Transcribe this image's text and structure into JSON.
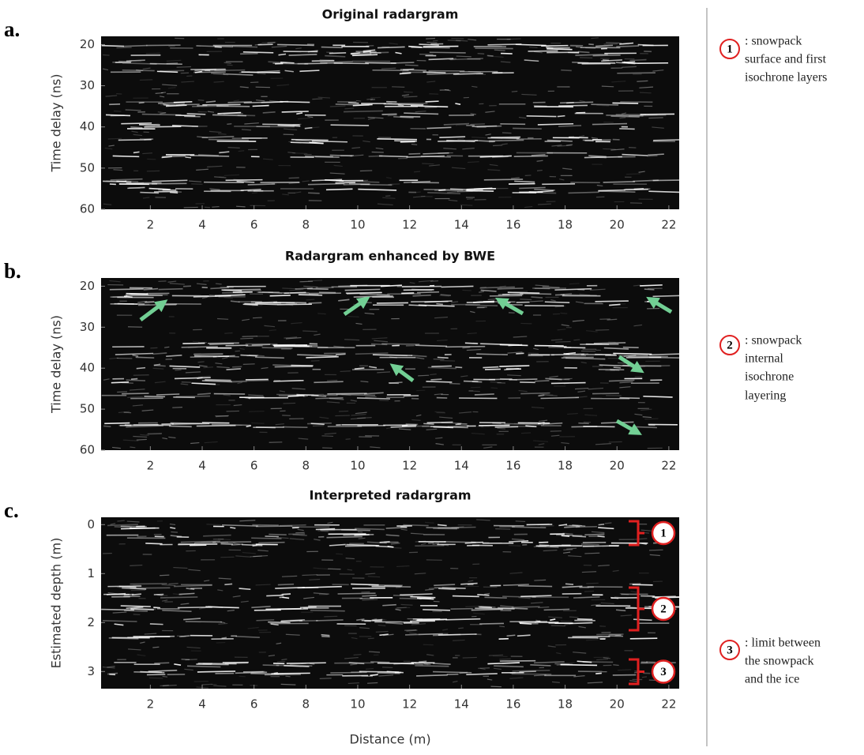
{
  "panels": [
    {
      "label": "a.",
      "title": "Original radargram",
      "ylabel": "Time delay (ns)",
      "xlim": [
        0.1,
        22.4
      ],
      "ylim": [
        18,
        60
      ],
      "y_reversed": true,
      "xticks": [
        2,
        4,
        6,
        8,
        10,
        12,
        14,
        16,
        18,
        20,
        22
      ],
      "yticks": [
        20,
        30,
        40,
        50,
        60
      ]
    },
    {
      "label": "b.",
      "title": "Radargram enhanced by BWE",
      "ylabel": "Time delay (ns)",
      "xlim": [
        0.1,
        22.4
      ],
      "ylim": [
        18,
        60
      ],
      "y_reversed": true,
      "xticks": [
        2,
        4,
        6,
        8,
        10,
        12,
        14,
        16,
        18,
        20,
        22
      ],
      "yticks": [
        20,
        30,
        40,
        50,
        60
      ]
    },
    {
      "label": "c.",
      "title": "Interpreted radargram",
      "ylabel": "Estimated depth (m)",
      "xlim": [
        0.1,
        22.4
      ],
      "ylim": [
        -0.15,
        3.35
      ],
      "y_reversed": true,
      "xticks": [
        2,
        4,
        6,
        8,
        10,
        12,
        14,
        16,
        18,
        20,
        22
      ],
      "yticks": [
        0,
        1,
        2,
        3
      ],
      "markers": [
        "1",
        "2",
        "3"
      ]
    }
  ],
  "xlabel": "Distance (m)",
  "legend": [
    {
      "number": "1",
      "lines": [
        ": snowpack",
        "surface and first",
        "isochrone layers"
      ]
    },
    {
      "number": "2",
      "lines": [
        ": snowpack",
        "internal",
        "isochrone",
        "layering"
      ]
    },
    {
      "number": "3",
      "lines": [
        ": limit between",
        "the snowpack",
        "and the ice"
      ]
    }
  ]
}
